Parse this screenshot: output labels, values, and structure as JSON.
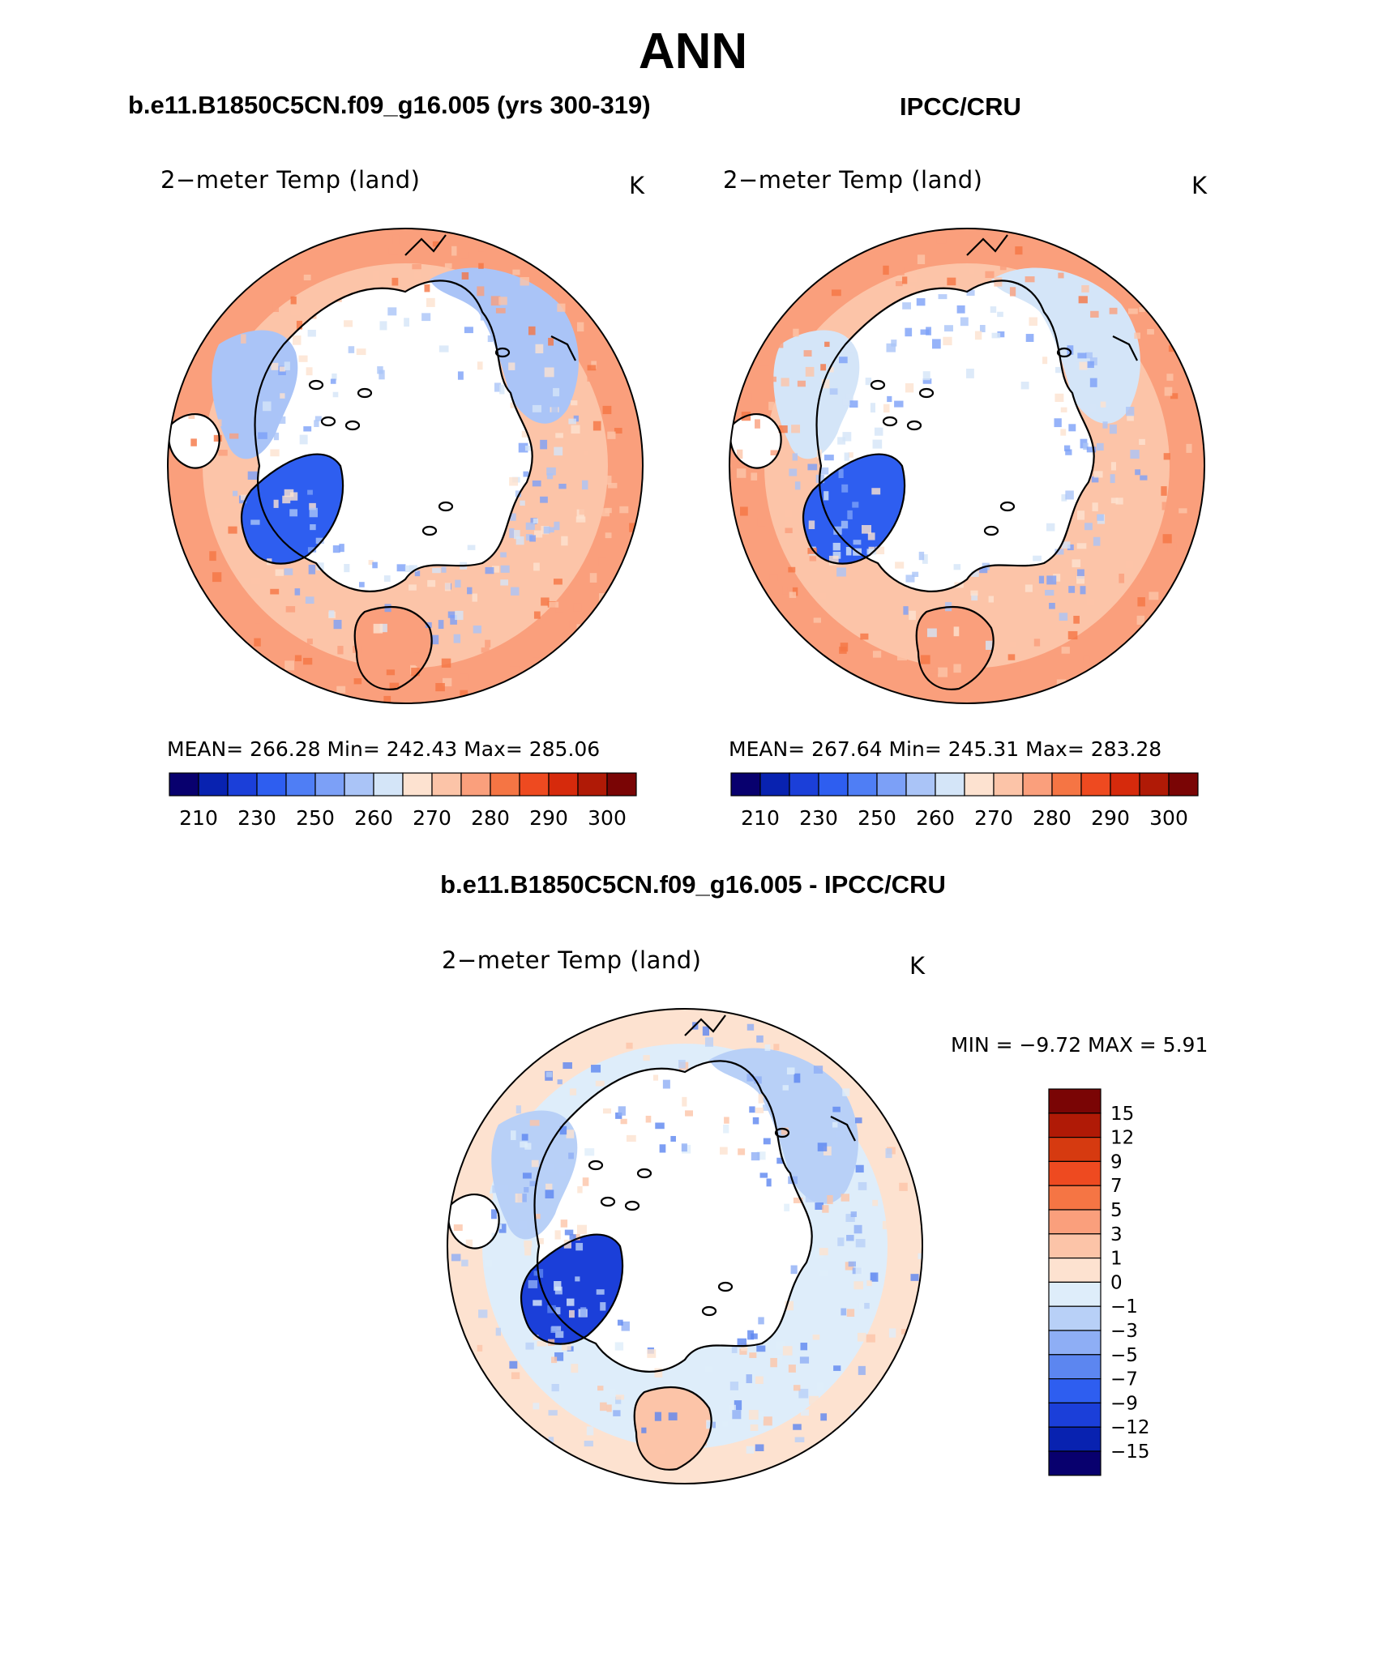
{
  "title": "ANN",
  "colors": {
    "abs_scale": [
      "#08006e",
      "#0822b0",
      "#1b3fd9",
      "#2e5ef0",
      "#4f7ef5",
      "#7ca0f7",
      "#aac4f7",
      "#d4e5f8",
      "#fde2d0",
      "#fcc4a8",
      "#fa9f7c",
      "#f57544",
      "#ee4a20",
      "#d62a0c",
      "#b01a06",
      "#7a0505"
    ],
    "diff_scale": [
      "#7a0505",
      "#b01a06",
      "#d63a10",
      "#ee4a20",
      "#f57544",
      "#fa9f7c",
      "#fcc4a8",
      "#fde2d0",
      "#deedfa",
      "#b8d0f7",
      "#8eaef5",
      "#5c86f0",
      "#2e5ef0",
      "#1b3fd9",
      "#0822b0",
      "#08006e"
    ]
  },
  "panels": {
    "model": {
      "title": "b.e11.B1850C5CN.f09_g16.005 (yrs 300-319)",
      "variable": "2−meter Temp (land)",
      "units": "K",
      "stats": "MEAN= 266.28   Min= 242.43   Max= 285.06",
      "tick_labels": [
        "210",
        "230",
        "250",
        "260",
        "270",
        "280",
        "290",
        "300"
      ]
    },
    "obs": {
      "title": "IPCC/CRU",
      "variable": "2−meter Temp (land)",
      "units": "K",
      "stats": "MEAN= 267.64   Min= 245.31   Max= 283.28",
      "tick_labels": [
        "210",
        "230",
        "250",
        "260",
        "270",
        "280",
        "290",
        "300"
      ]
    },
    "diff": {
      "title": "b.e11.B1850C5CN.f09_g16.005 - IPCC/CRU",
      "variable": "2−meter Temp (land)",
      "units": "K",
      "minmax": "MIN =   −9.72  MAX =     5.91",
      "tick_labels": [
        "15",
        "12",
        "9",
        "7",
        "5",
        "3",
        "1",
        "0",
        "−1",
        "−3",
        "−5",
        "−7",
        "−9",
        "−12",
        "−15"
      ]
    }
  }
}
